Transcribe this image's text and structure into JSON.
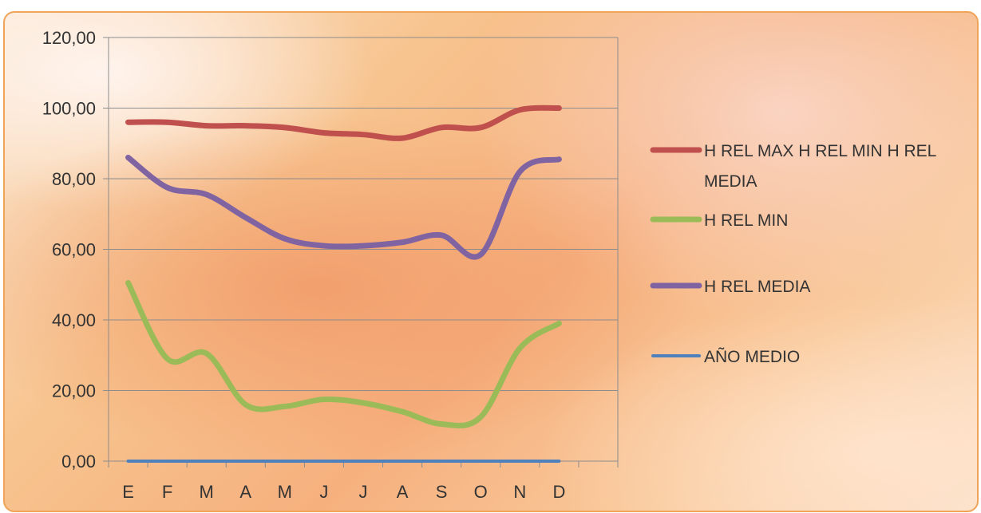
{
  "chart_data": {
    "type": "line",
    "categories": [
      "E",
      "F",
      "M",
      "A",
      "M",
      "J",
      "J",
      "A",
      "S",
      "O",
      "N",
      "D"
    ],
    "ylim": [
      0,
      120
    ],
    "yticks": [
      "0,00",
      "20,00",
      "40,00",
      "60,00",
      "80,00",
      "100,00",
      "120,00"
    ],
    "grid": true,
    "legend_position": "right",
    "series": [
      {
        "name": "H REL MAX H REL MIN H REL MEDIA",
        "color": "#c0504d",
        "values": [
          96,
          96,
          95,
          95,
          94.5,
          93,
          92.5,
          91.5,
          94.5,
          94.5,
          99.5,
          100
        ]
      },
      {
        "name": "H REL MIN",
        "color": "#9bbb59",
        "values": [
          50.5,
          29,
          30.5,
          16,
          15.5,
          17.5,
          16.5,
          14,
          10.5,
          12.5,
          32,
          39
        ]
      },
      {
        "name": "H REL MEDIA",
        "color": "#8064a2",
        "values": [
          86,
          77.5,
          75.5,
          69,
          63,
          61,
          61,
          62,
          64,
          58.5,
          82,
          85.5
        ]
      },
      {
        "name": "AÑO MEDIO",
        "color": "#4f81bd",
        "values": [
          0,
          0,
          0,
          0,
          0,
          0,
          0,
          0,
          0,
          0,
          0,
          0
        ]
      }
    ]
  }
}
